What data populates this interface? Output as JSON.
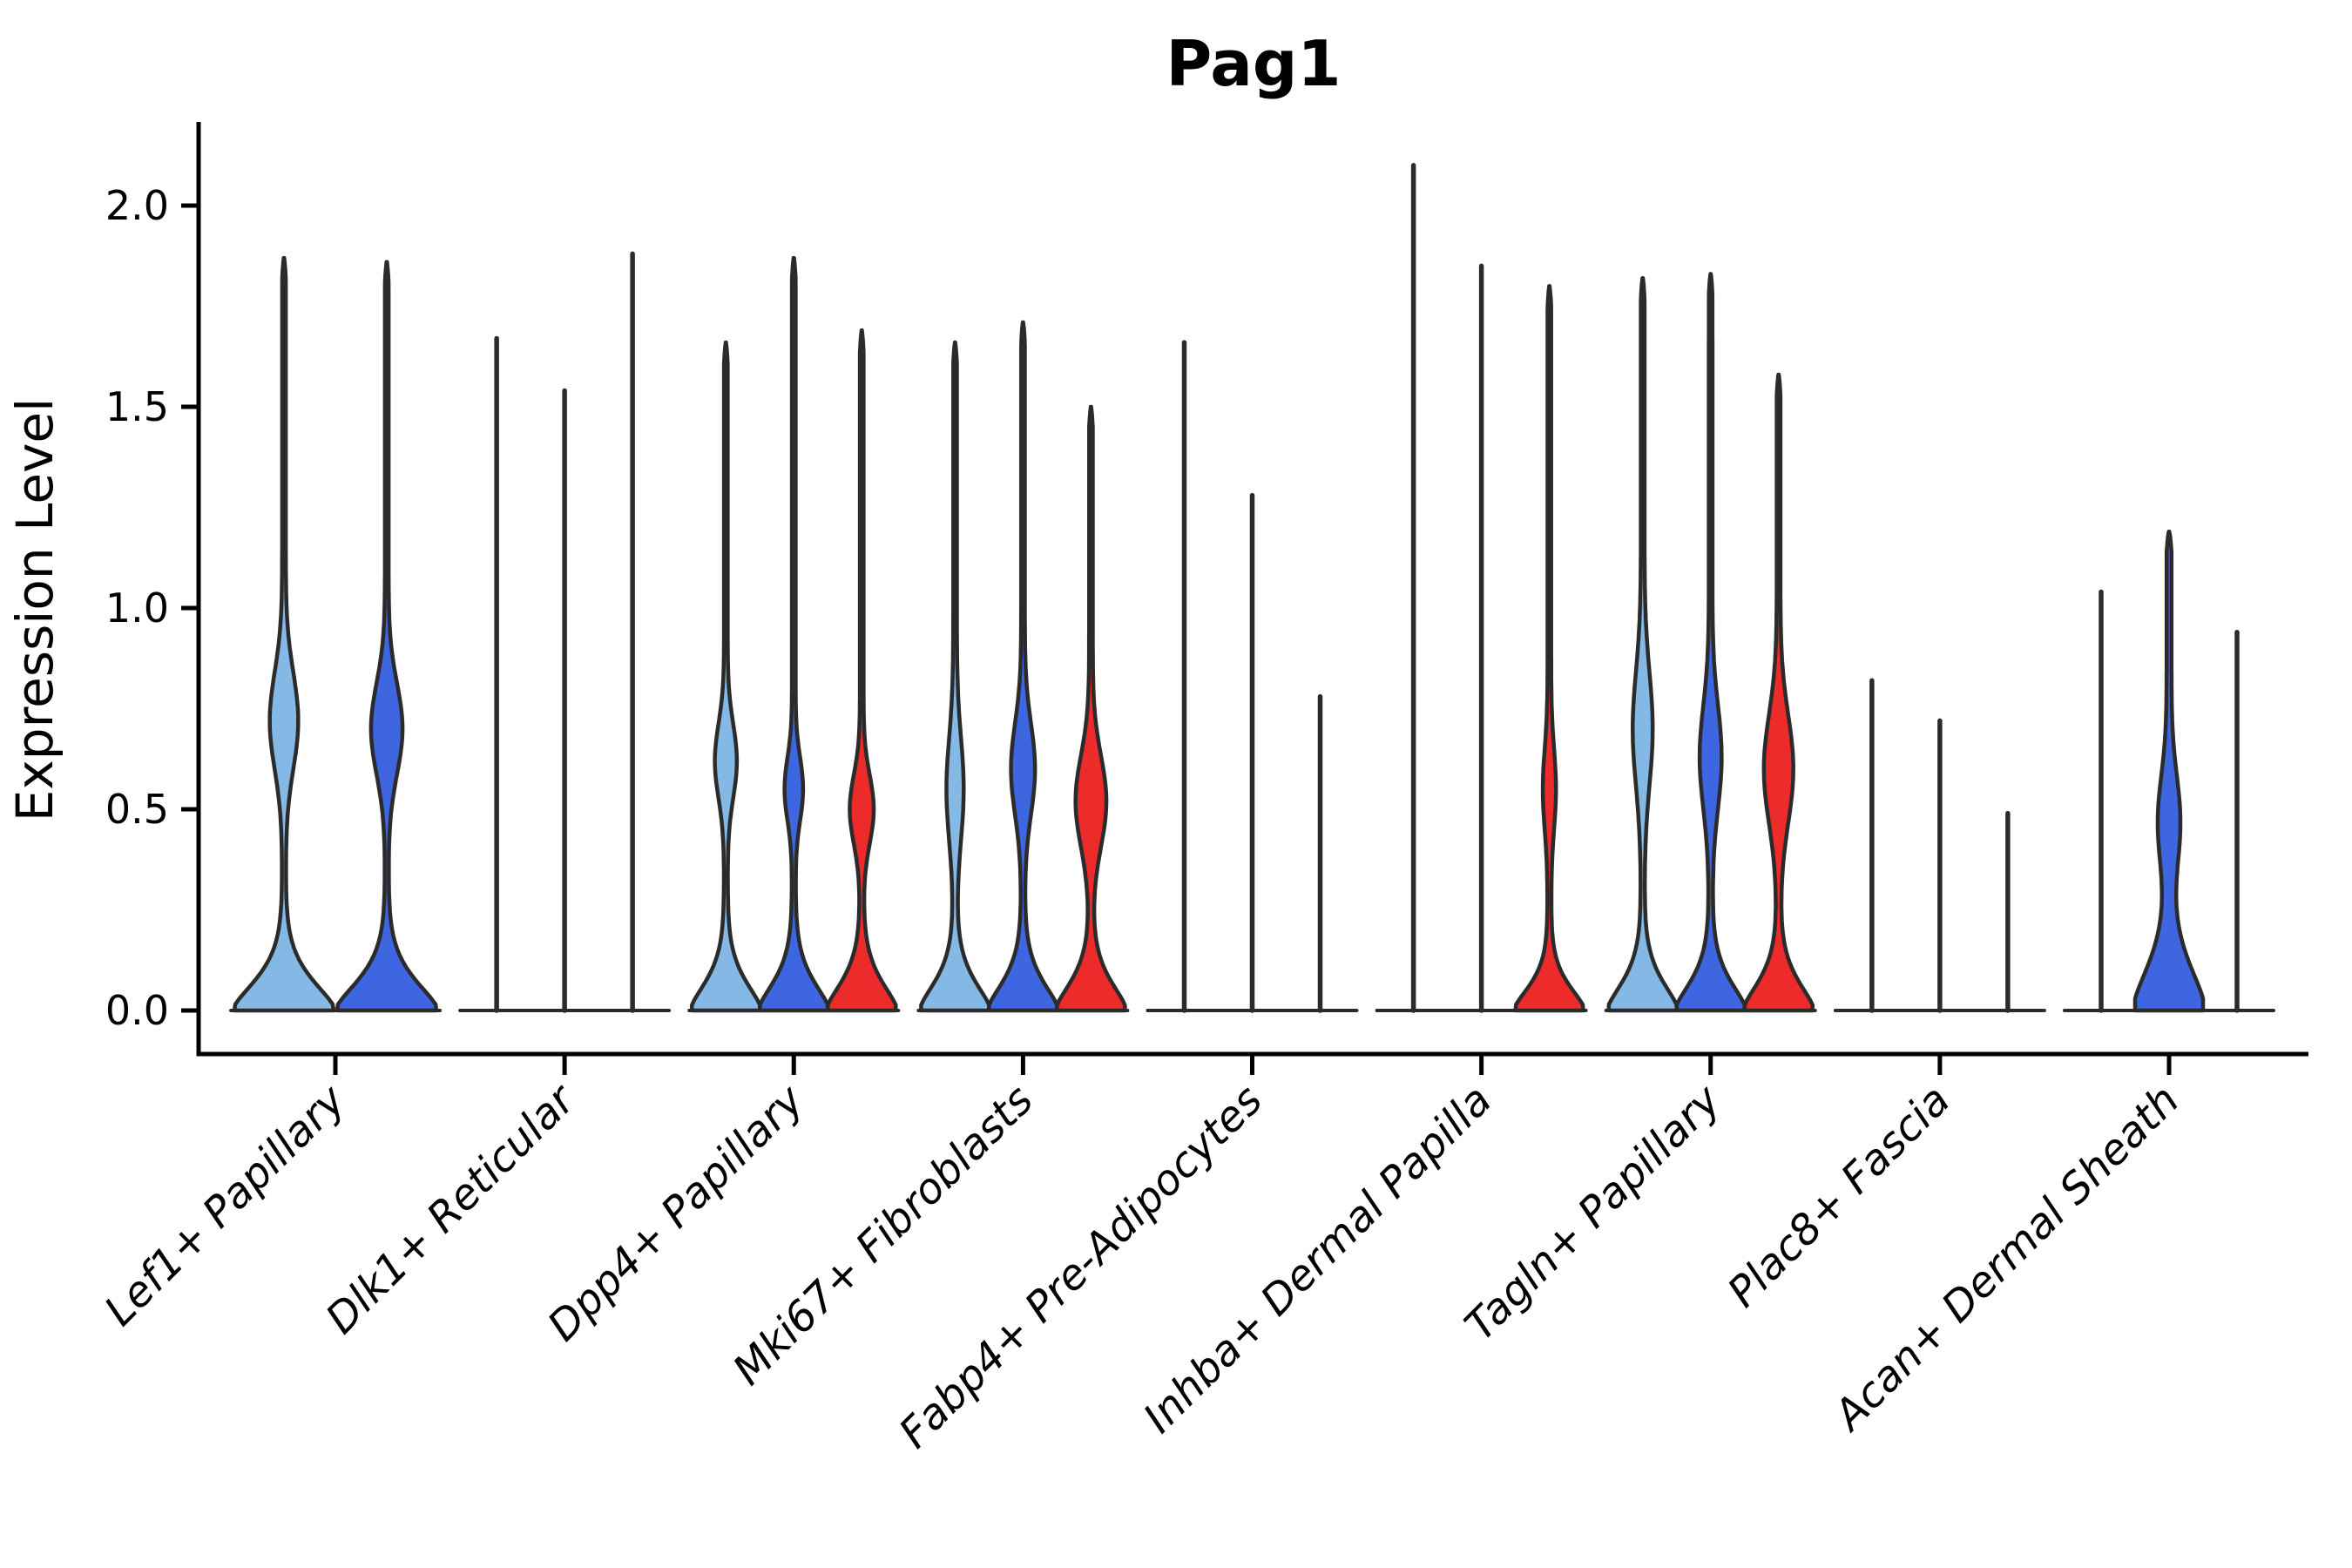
{
  "palette": {
    "light_blue": "#84B8E5",
    "dark_blue": "#3E66E0",
    "red": "#EE2B2B",
    "outline": "#2B2B2B",
    "axis": "#000000",
    "text": "#000000",
    "background": "#FFFFFF"
  },
  "chart_data": {
    "type": "violin",
    "title": "Pag1",
    "ylabel": "Expression Level",
    "xlabel": "",
    "ylim": [
      0,
      2.15
    ],
    "grid": false,
    "legend": "none",
    "yticks": [
      {
        "label": "0.0",
        "value": 0.0
      },
      {
        "label": "0.5",
        "value": 0.5
      },
      {
        "label": "1.0",
        "value": 1.0
      },
      {
        "label": "1.5",
        "value": 1.5
      },
      {
        "label": "2.0",
        "value": 2.0
      }
    ],
    "series": [
      {
        "id": "light_blue",
        "color": "#84B8E5"
      },
      {
        "id": "dark_blue",
        "color": "#3E66E0"
      },
      {
        "id": "red",
        "color": "#EE2B2B"
      }
    ],
    "categories": [
      "Lef1+ Papillary",
      "Dlk1+ Reticular",
      "Dpp4+ Papillary",
      "Mki67+ Fibroblasts",
      "Fabp4+ Pre-Adipocytes",
      "Inhba+ Dermal Papilla",
      "Tagln+ Papillary",
      "Plac8+ Fascia",
      "Acan+ Dermal Sheath"
    ],
    "groups": [
      {
        "category": "Lef1+ Papillary",
        "violins": [
          {
            "series": "light_blue",
            "kind": "violin",
            "max": 1.87,
            "base": {
              "s": 0.105,
              "p": 1.5,
              "a": 1
            },
            "bump": {
              "c": 0.72,
              "s": 0.17,
              "a": 0.25
            }
          },
          {
            "series": "dark_blue",
            "kind": "violin",
            "max": 1.86,
            "base": {
              "s": 0.105,
              "p": 1.5,
              "a": 1
            },
            "bump": {
              "c": 0.7,
              "s": 0.16,
              "a": 0.28
            }
          }
        ]
      },
      {
        "category": "Dlk1+ Reticular",
        "violins": [
          {
            "series": "light_blue",
            "kind": "line",
            "max": 1.67
          },
          {
            "series": "dark_blue",
            "kind": "line",
            "max": 1.54
          },
          {
            "series": "red",
            "kind": "line",
            "max": 1.88
          }
        ]
      },
      {
        "category": "Dpp4+ Papillary",
        "violins": [
          {
            "series": "light_blue",
            "kind": "violin",
            "max": 1.66,
            "base": {
              "s": 0.1,
              "p": 1.5,
              "a": 1
            },
            "bump": {
              "c": 0.62,
              "s": 0.13,
              "a": 0.27
            }
          },
          {
            "series": "dark_blue",
            "kind": "violin",
            "max": 1.87,
            "base": {
              "s": 0.1,
              "p": 1.5,
              "a": 1
            },
            "bump": {
              "c": 0.55,
              "s": 0.11,
              "a": 0.22
            }
          },
          {
            "series": "red",
            "kind": "violin",
            "max": 1.69,
            "base": {
              "s": 0.1,
              "p": 1.5,
              "a": 1
            },
            "bump": {
              "c": 0.5,
              "s": 0.12,
              "a": 0.3
            }
          }
        ]
      },
      {
        "category": "Mki67+ Fibroblasts",
        "violins": [
          {
            "series": "light_blue",
            "kind": "violin",
            "max": 1.66,
            "base": {
              "s": 0.1,
              "p": 1.5,
              "a": 1
            },
            "bump": {
              "c": 0.55,
              "s": 0.18,
              "a": 0.2
            }
          },
          {
            "series": "dark_blue",
            "kind": "violin",
            "max": 1.71,
            "base": {
              "s": 0.1,
              "p": 1.5,
              "a": 1
            },
            "bump": {
              "c": 0.6,
              "s": 0.16,
              "a": 0.3
            }
          },
          {
            "series": "red",
            "kind": "violin",
            "max": 1.5,
            "base": {
              "s": 0.1,
              "p": 1.5,
              "a": 1
            },
            "bump": {
              "c": 0.52,
              "s": 0.16,
              "a": 0.4
            }
          }
        ]
      },
      {
        "category": "Fabp4+ Pre-Adipocytes",
        "violins": [
          {
            "series": "light_blue",
            "kind": "line",
            "max": 1.66
          },
          {
            "series": "dark_blue",
            "kind": "line",
            "max": 1.28
          },
          {
            "series": "red",
            "kind": "line",
            "max": 0.78
          }
        ]
      },
      {
        "category": "Inhba+ Dermal Papilla",
        "violins": [
          {
            "series": "light_blue",
            "kind": "line",
            "max": 2.1
          },
          {
            "series": "dark_blue",
            "kind": "line",
            "max": 1.85
          },
          {
            "series": "red",
            "kind": "violin",
            "max": 1.8,
            "base": {
              "s": 0.085,
              "p": 1.5,
              "a": 1
            },
            "bump": {
              "c": 0.55,
              "s": 0.14,
              "a": 0.14
            }
          }
        ]
      },
      {
        "category": "Tagln+ Papillary",
        "violins": [
          {
            "series": "light_blue",
            "kind": "violin",
            "max": 1.82,
            "base": {
              "s": 0.1,
              "p": 1.5,
              "a": 1
            },
            "bump": {
              "c": 0.7,
              "s": 0.2,
              "a": 0.24
            }
          },
          {
            "series": "dark_blue",
            "kind": "violin",
            "max": 1.83,
            "base": {
              "s": 0.1,
              "p": 1.5,
              "a": 1
            },
            "bump": {
              "c": 0.63,
              "s": 0.18,
              "a": 0.27
            }
          },
          {
            "series": "red",
            "kind": "violin",
            "max": 1.58,
            "base": {
              "s": 0.1,
              "p": 1.5,
              "a": 1
            },
            "bump": {
              "c": 0.6,
              "s": 0.19,
              "a": 0.38
            }
          }
        ]
      },
      {
        "category": "Plac8+ Fascia",
        "violins": [
          {
            "series": "light_blue",
            "kind": "line",
            "max": 0.82
          },
          {
            "series": "dark_blue",
            "kind": "line",
            "max": 0.72
          },
          {
            "series": "red",
            "kind": "line",
            "max": 0.49
          }
        ]
      },
      {
        "category": "Acan+ Dermal Sheath",
        "violins": [
          {
            "series": "light_blue",
            "kind": "line",
            "max": 1.04
          },
          {
            "series": "dark_blue",
            "kind": "violin",
            "max": 1.19,
            "base": {
              "s": 0.155,
              "p": 1.6,
              "a": 1
            },
            "bump": {
              "c": 0.47,
              "s": 0.16,
              "a": 0.26
            },
            "stem": 2.8
          },
          {
            "series": "red",
            "kind": "line",
            "max": 0.94
          }
        ]
      }
    ]
  }
}
